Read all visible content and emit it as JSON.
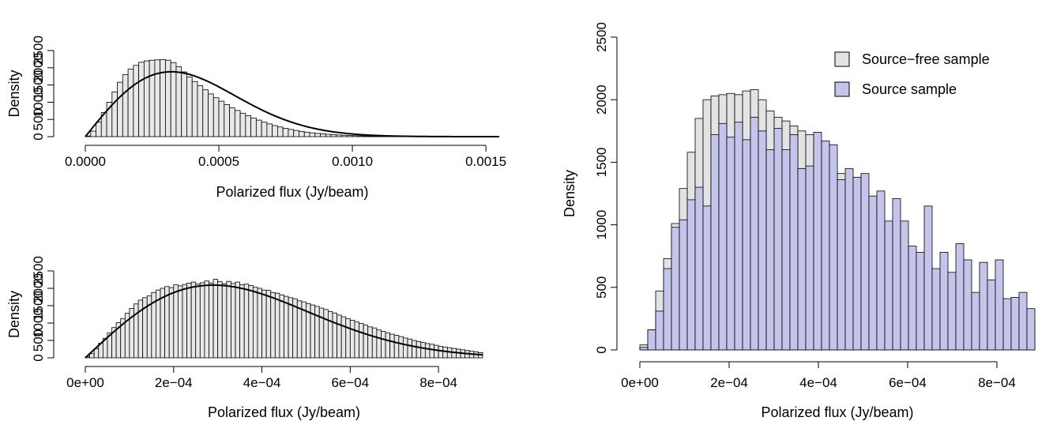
{
  "chart_data": [
    {
      "id": "top-left",
      "type": "bar",
      "xlabel": "Polarized flux (Jy/beam)",
      "ylabel": "Density",
      "xlim": [
        0,
        0.00155
      ],
      "ylim": [
        0,
        2500
      ],
      "xticks": [
        0,
        0.0005,
        0.001,
        0.0015
      ],
      "xtick_labels": [
        "0.0000",
        "0.0005",
        "0.0010",
        "0.0015"
      ],
      "yticks": [
        0,
        500,
        1000,
        1500,
        2000,
        2500
      ],
      "ytick_labels": [
        "0",
        "500",
        "1000",
        "1500",
        "2000",
        "2500"
      ],
      "bin_start": 0,
      "bin_width": 2e-05,
      "values": [
        20,
        160,
        420,
        700,
        1000,
        1300,
        1580,
        1800,
        1960,
        2070,
        2160,
        2200,
        2220,
        2230,
        2240,
        2220,
        2150,
        2030,
        1880,
        1730,
        1600,
        1480,
        1360,
        1240,
        1130,
        1030,
        930,
        840,
        760,
        680,
        610,
        540,
        480,
        420,
        370,
        320,
        280,
        240,
        210,
        180,
        150,
        130,
        110,
        95,
        80,
        68,
        57,
        48,
        40,
        34,
        28,
        24,
        20,
        17,
        14,
        12,
        10,
        9,
        8,
        7,
        6,
        5,
        5,
        4,
        4,
        3,
        3,
        3,
        2,
        2,
        2,
        2,
        2,
        2,
        2,
        2,
        2
      ],
      "curve": {
        "kind": "rayleigh",
        "sigma": 0.000322,
        "x_max": 0.00155
      },
      "bar_color": "#e8e8e8"
    },
    {
      "id": "bottom-left",
      "type": "bar",
      "xlabel": "Polarized flux (Jy/beam)",
      "ylabel": "Density",
      "xlim": [
        0,
        0.0009
      ],
      "ylim": [
        0,
        2500
      ],
      "xticks": [
        0,
        0.0002,
        0.0004,
        0.0006,
        0.0008
      ],
      "xtick_labels": [
        "0e+00",
        "2e−04",
        "4e−04",
        "6e−04",
        "8e−04"
      ],
      "yticks": [
        0,
        500,
        1000,
        1500,
        2000,
        2500
      ],
      "ytick_labels": [
        "0",
        "500",
        "1000",
        "1500",
        "2000",
        "2500"
      ],
      "bin_start": 0,
      "bin_width": 1e-05,
      "values": [
        30,
        120,
        260,
        420,
        560,
        720,
        870,
        1010,
        1130,
        1280,
        1420,
        1550,
        1660,
        1730,
        1780,
        1880,
        1950,
        2000,
        2050,
        2020,
        2100,
        2070,
        2110,
        2150,
        2180,
        2120,
        2160,
        2210,
        2150,
        2260,
        2190,
        2130,
        2200,
        2140,
        2180,
        2100,
        2120,
        2080,
        2030,
        2000,
        1950,
        1940,
        1880,
        1860,
        1810,
        1770,
        1730,
        1700,
        1640,
        1610,
        1560,
        1520,
        1480,
        1430,
        1390,
        1330,
        1290,
        1230,
        1180,
        1130,
        1080,
        1030,
        990,
        940,
        890,
        860,
        800,
        760,
        720,
        680,
        650,
        610,
        570,
        540,
        500,
        470,
        440,
        410,
        390,
        360,
        330,
        310,
        290,
        270,
        250,
        230,
        210,
        190,
        170,
        150
      ],
      "curve": {
        "kind": "rayleigh",
        "sigma": 0.00029,
        "x_max": 0.0009
      },
      "bar_color": "#e8e8e8"
    },
    {
      "id": "right",
      "type": "bar",
      "xlabel": "Polarized flux (Jy/beam)",
      "ylabel": "Density",
      "xlim": [
        0,
        0.000885
      ],
      "ylim": [
        0,
        2500
      ],
      "xticks": [
        0,
        0.0002,
        0.0004,
        0.0006,
        0.0008
      ],
      "xtick_labels": [
        "0e+00",
        "2e−04",
        "4e−04",
        "6e−04",
        "8e−04"
      ],
      "yticks": [
        0,
        500,
        1000,
        1500,
        2000,
        2500
      ],
      "ytick_labels": [
        "0",
        "500",
        "1000",
        "1500",
        "2000",
        "2500"
      ],
      "bin_start": 0,
      "bin_width": 1.77e-05,
      "legend_position": "top-right",
      "series": [
        {
          "name": "Source−free sample",
          "color": "#e3e3e3",
          "values": [
            40,
            160,
            470,
            730,
            1010,
            1290,
            1580,
            1850,
            2000,
            2030,
            2040,
            2050,
            2040,
            2070,
            2080,
            2000,
            1910,
            1860,
            1830,
            1790,
            1750,
            1720,
            1630,
            1570,
            1420,
            1410,
            1260,
            1180,
            1080,
            1030,
            1010,
            890,
            840,
            800,
            770,
            730,
            680,
            640,
            570,
            470,
            430,
            390,
            360,
            330,
            310,
            280,
            260,
            250,
            240,
            230
          ]
        },
        {
          "name": "Source sample",
          "color": "#c5c5ec",
          "values": [
            20,
            160,
            310,
            650,
            980,
            1040,
            1200,
            1300,
            1150,
            1720,
            1810,
            1700,
            1820,
            1680,
            1860,
            1750,
            1600,
            1770,
            1600,
            1720,
            1450,
            1470,
            1740,
            1670,
            1640,
            1360,
            1450,
            1380,
            1410,
            1230,
            1270,
            1030,
            1210,
            1030,
            830,
            780,
            1150,
            650,
            780,
            620,
            850,
            720,
            460,
            700,
            560,
            720,
            410,
            420,
            460,
            330
          ]
        }
      ]
    }
  ]
}
